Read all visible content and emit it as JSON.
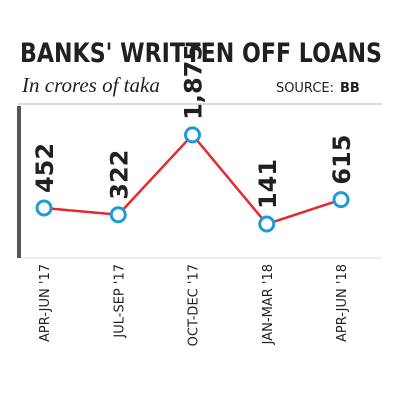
{
  "chart_data": {
    "type": "line",
    "title": "BANKS' WRITTEN OFF LOANS",
    "subtitle": "In crores of taka",
    "source_label": "SOURCE:",
    "source": "BB",
    "categories": [
      "APR-JUN '17",
      "JUL-SEP '17",
      "OCT-DEC '17",
      "JAN-MAR '18",
      "APR-JUN '18"
    ],
    "values": [
      452,
      322,
      1875,
      141,
      615
    ],
    "value_labels": [
      "452",
      "322",
      "1,875",
      "141",
      "615"
    ],
    "color": "#e8262b",
    "marker_color": "#1e9ad6",
    "ylim": [
      0,
      2000
    ]
  }
}
